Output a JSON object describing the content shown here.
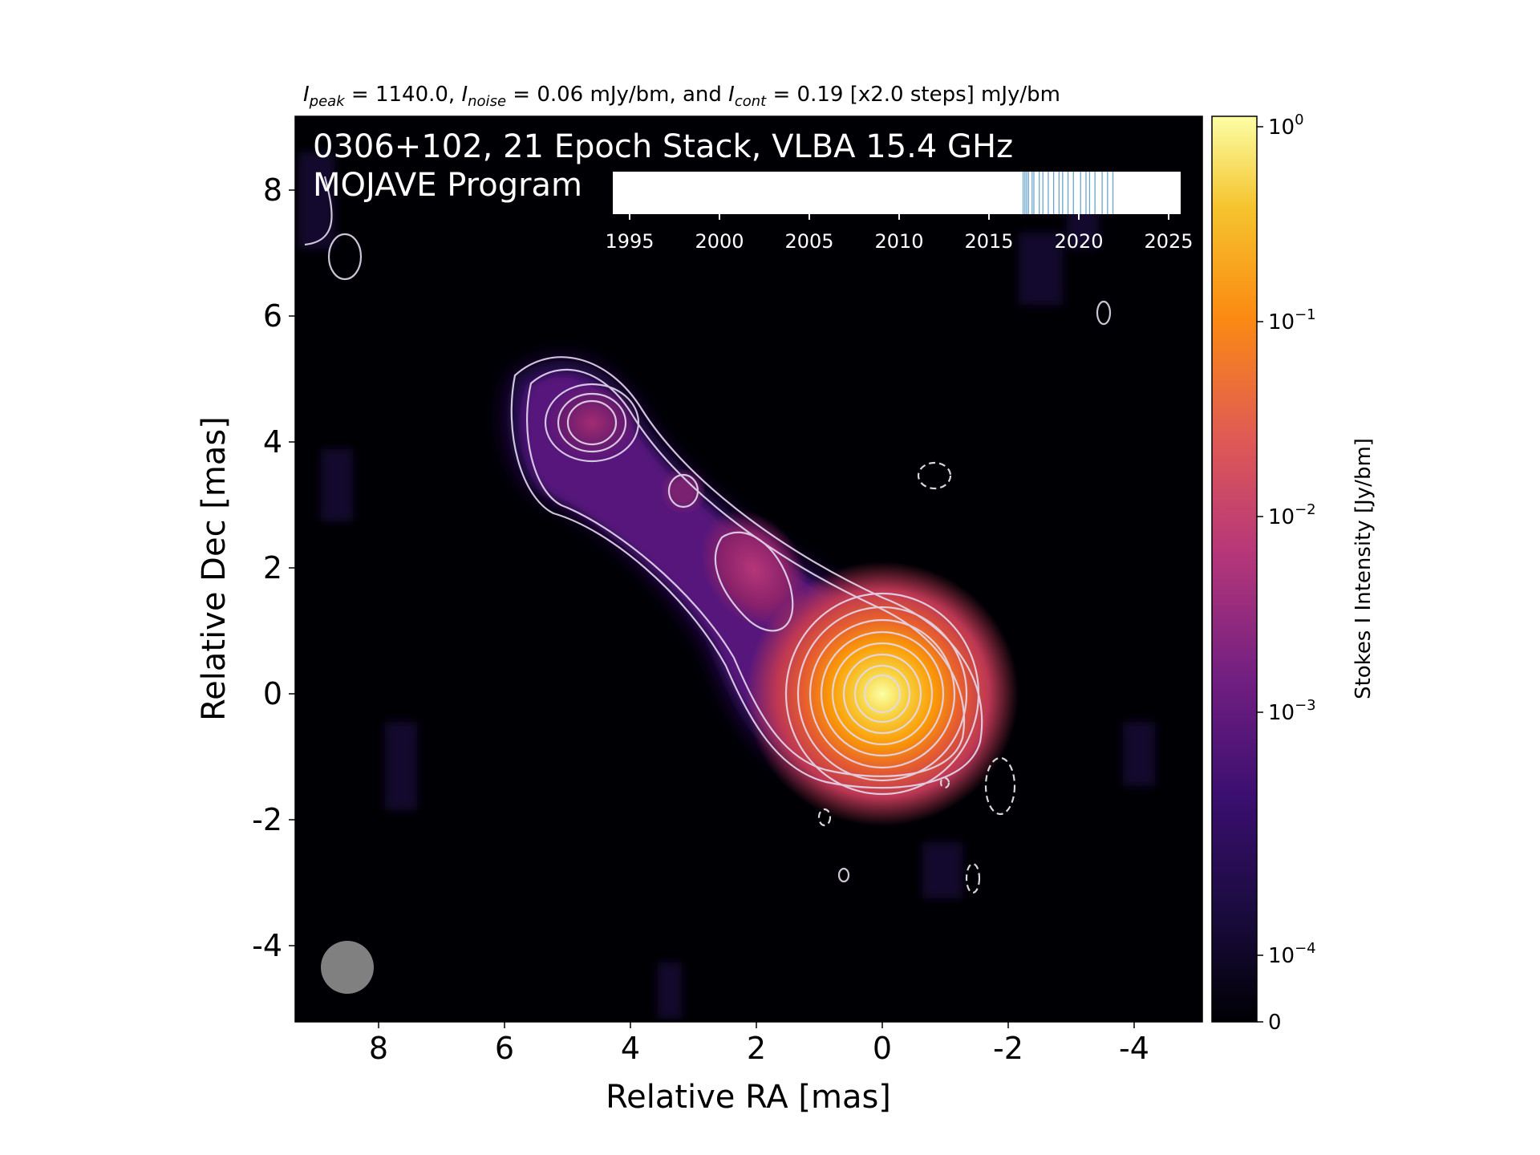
{
  "chart_data": {
    "type": "heatmap",
    "header": {
      "i_peak_sub": "peak",
      "i_peak_val": " = 1140.0, ",
      "i_noise_sub": "noise",
      "i_noise_val": " = 0.06 mJy/bm, and ",
      "i_cont_sub": "cont",
      "i_cont_val": " = 0.19 [x2.0 steps] mJy/bm",
      "symbol": "I"
    },
    "title_line1": "0306+102, 21 Epoch Stack, VLBA 15.4 GHz",
    "title_line2": "MOJAVE Program",
    "xlabel": "Relative RA [mas]",
    "ylabel": "Relative Dec [mas]",
    "xlim": [
      9.5,
      -5
    ],
    "ylim": [
      -5.2,
      9.3
    ],
    "xticks": [
      "8",
      "6",
      "4",
      "2",
      "0",
      "-2",
      "-4"
    ],
    "yticks": [
      "8",
      "6",
      "4",
      "2",
      "0",
      "-2",
      "-4"
    ],
    "colormap": "inferno",
    "colorbar": {
      "label": "Stokes I Intensity [Jy/bm]",
      "scale": "log",
      "ticks": [
        "10",
        "10",
        "10",
        "10",
        "10",
        "0"
      ],
      "tick_exponents": [
        "0",
        "−1",
        "−2",
        "−3",
        "−4",
        ""
      ]
    },
    "components": [
      {
        "ra": 0.0,
        "dec": 0.0,
        "flux_jy": 1.14
      },
      {
        "ra": 2.3,
        "dec": 2.0,
        "flux_jy": 0.0035
      },
      {
        "ra": 3.3,
        "dec": 3.3,
        "flux_jy": 0.0009
      },
      {
        "ra": 4.7,
        "dec": 4.4,
        "flux_jy": 0.0015
      }
    ],
    "timeline": {
      "axis_ticks": [
        "1995",
        "2000",
        "2005",
        "2010",
        "2015",
        "2020",
        "2025"
      ],
      "epochs": [
        2016.9,
        2017.0,
        2017.1,
        2017.2,
        2017.4,
        2017.5,
        2017.8,
        2018.0,
        2018.3,
        2018.6,
        2018.9,
        2019.1,
        2019.4,
        2019.7,
        2020.1,
        2020.4,
        2020.6,
        2020.9,
        2021.3,
        2021.6,
        2021.9
      ],
      "epoch_color": "#6aa6cf"
    },
    "beam": {
      "ra": 8.6,
      "dec": -4.3,
      "color": "#808080"
    }
  }
}
